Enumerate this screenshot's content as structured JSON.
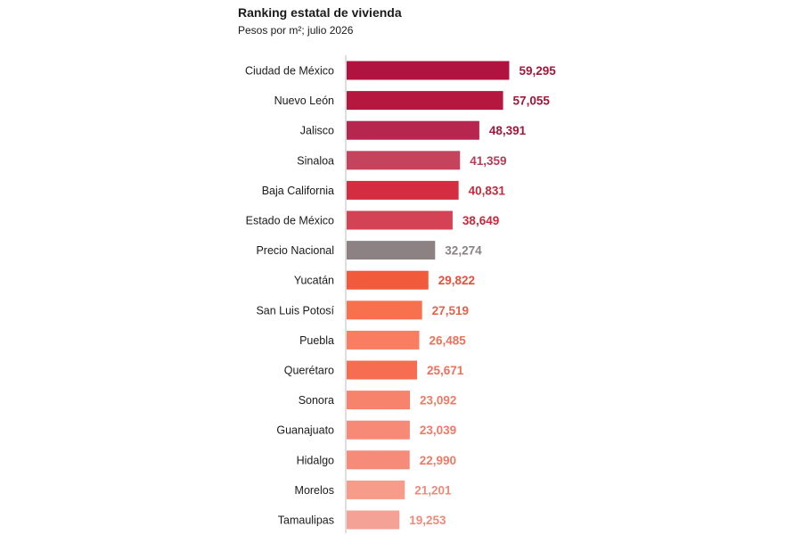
{
  "chart_data": {
    "type": "bar",
    "orientation": "horizontal",
    "title": "Ranking estatal de vivienda",
    "subtitle": "Pesos por m²; julio 2026",
    "xlabel": "",
    "ylabel": "",
    "grid": false,
    "legend": "none",
    "categories": [
      "Ciudad de México",
      "Nuevo León",
      "Jalisco",
      "Sinaloa",
      "Baja California",
      "Estado de México",
      "Precio Nacional",
      "Yucatán",
      "San Luis Potosí",
      "Puebla",
      "Querétaro",
      "Sonora",
      "Guanajuato",
      "Hidalgo",
      "Morelos",
      "Tamaulipas"
    ],
    "values": [
      59295,
      57055,
      48391,
      41359,
      40831,
      38649,
      32274,
      29822,
      27519,
      26485,
      25671,
      23092,
      23039,
      22990,
      21201,
      19253
    ],
    "labels": [
      "59,295",
      "57,055",
      "48,391",
      "41,359",
      "40,831",
      "38,649",
      "32,274",
      "29,822",
      "27,519",
      "26,485",
      "25,671",
      "23,092",
      "23,039",
      "22,990",
      "21,201",
      "19,253"
    ],
    "bar_colors": [
      "#b0133f",
      "#b5173f",
      "#b7264f",
      "#c4445e",
      "#d42c40",
      "#d44256",
      "#8c8283",
      "#f25a3c",
      "#f8714f",
      "#f87d61",
      "#f66d52",
      "#f7836d",
      "#f78a77",
      "#f68b7a",
      "#f79b8b",
      "#f4a296"
    ],
    "label_colors": [
      "#a3173a",
      "#a3173a",
      "#a3173a",
      "#b83a55",
      "#c8283c",
      "#c8283c",
      "#8c8283",
      "#e8503a",
      "#e8604a",
      "#ed705a",
      "#ed705a",
      "#ee7a66",
      "#ee7a66",
      "#ee7a66",
      "#ef8a7a",
      "#ef8a7a"
    ]
  }
}
